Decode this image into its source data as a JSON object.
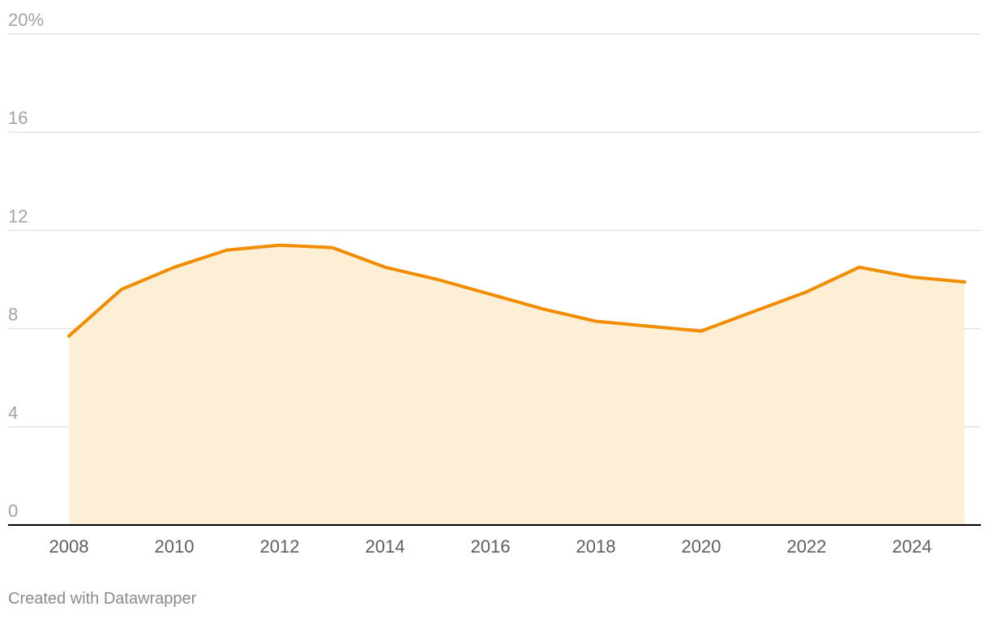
{
  "chart_data": {
    "type": "area",
    "x": [
      2008,
      2009,
      2010,
      2011,
      2012,
      2013,
      2014,
      2015,
      2016,
      2017,
      2018,
      2019,
      2020,
      2021,
      2022,
      2023,
      2024,
      2025
    ],
    "series": [
      {
        "values": [
          7.7,
          9.6,
          10.5,
          11.2,
          11.4,
          11.3,
          10.5,
          10.0,
          9.4,
          8.8,
          8.3,
          8.1,
          7.9,
          8.7,
          9.5,
          10.5,
          10.1,
          9.9
        ]
      }
    ],
    "ylim": [
      0,
      20
    ],
    "y_ticks": [
      0,
      4,
      8,
      12,
      16,
      20
    ],
    "y_tick_labels": [
      "0",
      "4",
      "8",
      "12",
      "16",
      "20%"
    ],
    "x_ticks": [
      2008,
      2010,
      2012,
      2014,
      2016,
      2018,
      2020,
      2022,
      2024
    ],
    "x_tick_labels": [
      "2008",
      "2010",
      "2012",
      "2014",
      "2016",
      "2018",
      "2020",
      "2022",
      "2024"
    ],
    "grid": true,
    "colors": {
      "line": "#f28c00",
      "area": "#fdefd6",
      "grid": "#e3e3e3",
      "baseline": "#000000"
    },
    "credit": "Created with Datawrapper"
  }
}
